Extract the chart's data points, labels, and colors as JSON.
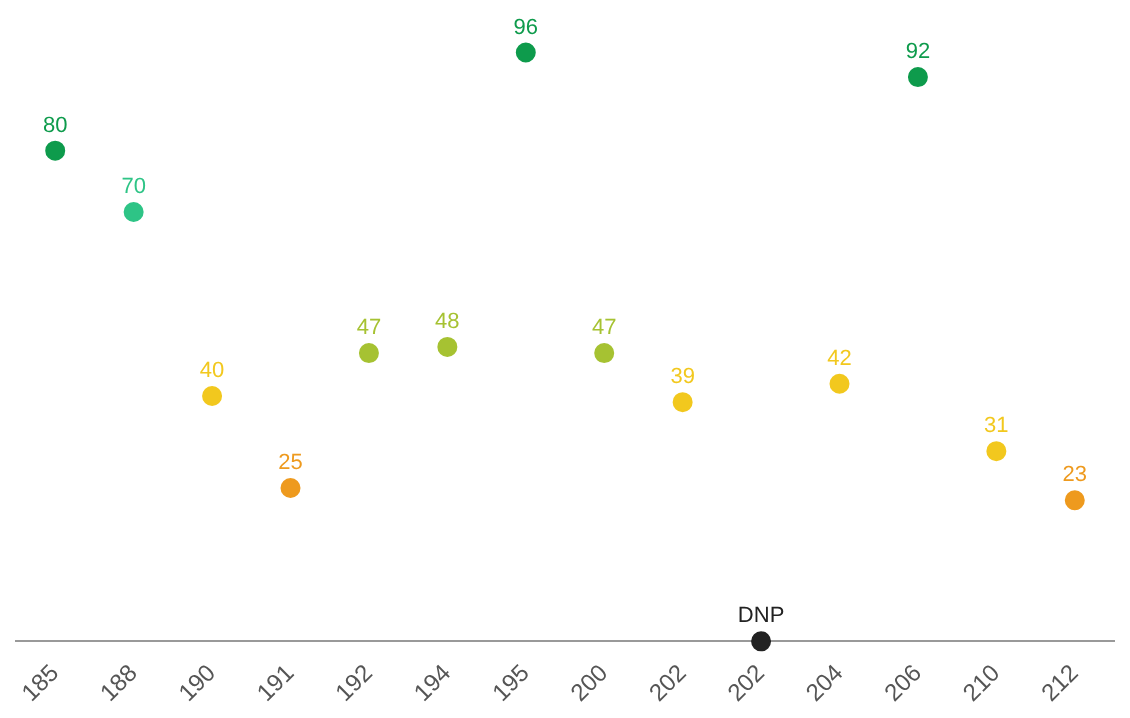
{
  "chart_data": {
    "type": "scatter",
    "categories": [
      "185",
      "188",
      "190",
      "191",
      "192",
      "194",
      "195",
      "200",
      "202",
      "202",
      "204",
      "206",
      "210",
      "212"
    ],
    "values": [
      80,
      70,
      40,
      25,
      47,
      48,
      96,
      47,
      39,
      0,
      42,
      92,
      31,
      23
    ],
    "colors": [
      "#0e9b4c",
      "#2ec486",
      "#f2c81e",
      "#ee9a1e",
      "#a6c232",
      "#a6c232",
      "#0e9b4c",
      "#a6c232",
      "#f2c81e",
      "#222222",
      "#f2c81e",
      "#0e9b4c",
      "#f2c81e",
      "#ee9a1e"
    ],
    "value_labels": [
      "80",
      "70",
      "40",
      "25",
      "47",
      "48",
      "96",
      "47",
      "39",
      "DNP",
      "42",
      "92",
      "31",
      "23"
    ],
    "tick_labels": "x",
    "marker": "circle"
  }
}
